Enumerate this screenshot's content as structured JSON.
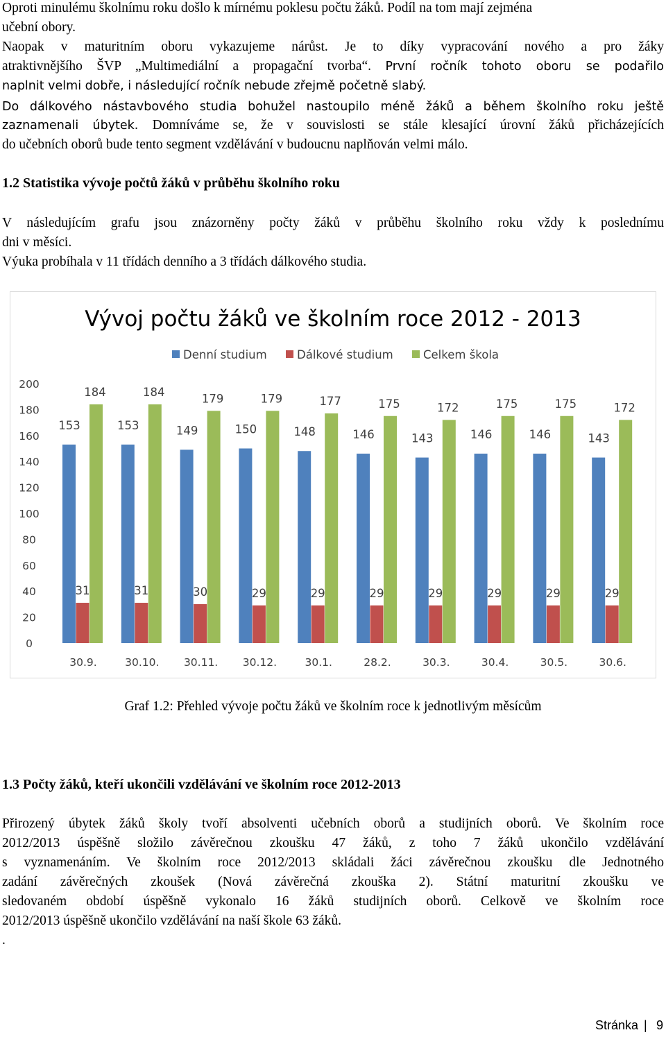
{
  "intro": {
    "line1": "Oproti minulému školnímu roku došlo k mírnému poklesu počtu žáků. Podíl na tom mají zejména",
    "line2": "učební obory.",
    "line3": "Naopak v maturitním oboru vykazujeme nárůst. Je to díky vypracování nového a pro žáky",
    "line4a": "atraktivnějšího ŠVP „Multimediální a propagační tvorba“. ",
    "line4b": "První ročník tohoto oboru se podařilo",
    "line5": "naplnit velmi dobře, i následující ročník nebude zřejmě početně slabý.",
    "line6": "Do dálkového nástavbového studia bohužel nastoupilo méně žáků a během školního roku ještě",
    "line7a": "zaznamenali úbytek. ",
    "line7b": "Domníváme se, že v souvislosti se stále klesající úrovní žáků přicházejících",
    "line8": "do učebních oborů bude tento segment vzdělávání v budoucnu naplňován velmi málo."
  },
  "section12": {
    "heading": "1.2 Statistika vývoje počtů žáků v průběhu školního roku",
    "para1_line1": "V následujícím grafu jsou znázorněny počty žáků v průběhu školního roku vždy k poslednímu",
    "para1_line2": "dni v měsíci.",
    "para2": "Výuka probíhala v 11 třídách denního a 3 třídách dálkového studia."
  },
  "chart_data": {
    "type": "bar",
    "title": "Vývoj počtu žáků ve školním roce 2012 - 2013",
    "categories": [
      "30.9.",
      "30.10.",
      "30.11.",
      "30.12.",
      "30.1.",
      "28.2.",
      "30.3.",
      "30.4.",
      "30.5.",
      "30.6."
    ],
    "series": [
      {
        "name": "Denní studium",
        "color": "#4f81bd",
        "values": [
          153,
          153,
          149,
          150,
          148,
          146,
          143,
          146,
          146,
          143
        ]
      },
      {
        "name": "Dálkové studium",
        "color": "#c0504d",
        "values": [
          31,
          31,
          30,
          29,
          29,
          29,
          29,
          29,
          29,
          29
        ]
      },
      {
        "name": "Celkem škola",
        "color": "#9bbb59",
        "values": [
          184,
          184,
          179,
          179,
          177,
          175,
          172,
          175,
          175,
          172
        ]
      }
    ],
    "yticks": [
      "0",
      "20",
      "40",
      "60",
      "80",
      "100",
      "120",
      "140",
      "160",
      "180",
      "200"
    ],
    "ylim": [
      0,
      200
    ],
    "grid": false,
    "legend_position": "top"
  },
  "caption": "Graf 1.2: Přehled vývoje počtu žáků ve školním roce k jednotlivým měsícům",
  "section13": {
    "heading": "1.3 Počty žáků, kteří ukončili vzdělávání ve školním roce 2012-2013",
    "line1": "Přirozený úbytek žáků školy tvoří absolventi učebních oborů a studijních oborů.  Ve školním roce",
    "line2": "2012/2013  úspěšně složilo závěrečnou zkoušku 47 žáků, z toho 7 žáků ukončilo vzdělávání",
    "line3": "s vyznamenáním. Ve školním roce 2012/2013 skládali žáci závěrečnou zkoušku dle Jednotného",
    "line4": "zadání závěrečných zkoušek (Nová závěrečná zkouška 2). Státní maturitní zkoušku ve",
    "line5": "sledovaném období úspěšně vykonalo 16 žáků studijních oborů. Celkově ve školním roce",
    "line6": "2012/2013 úspěšně ukončilo vzdělávání na naší škole 63 žáků.",
    "dot": "."
  },
  "footer": {
    "label": "Stránka",
    "separator": "|",
    "page": "9"
  }
}
